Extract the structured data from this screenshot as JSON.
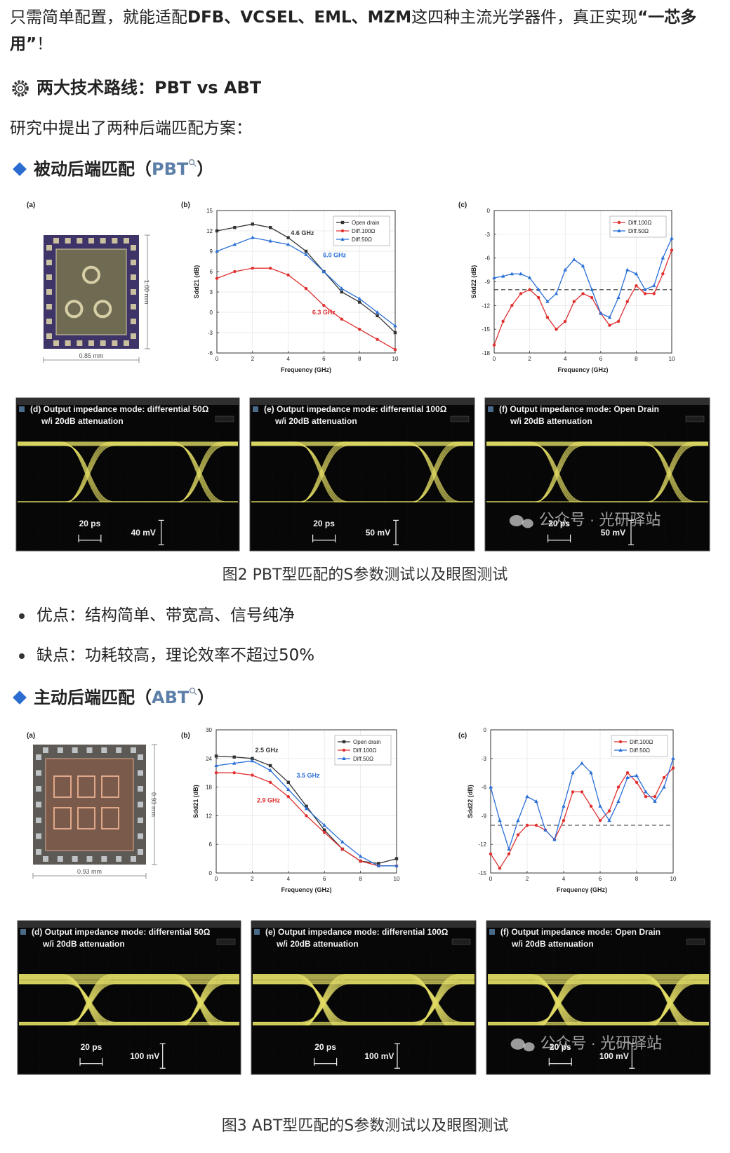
{
  "intro": {
    "runs": [
      {
        "text": "只需简单配置，就能适配"
      },
      {
        "text": "DFB、VCSEL、EML、MZM",
        "bold": true
      },
      {
        "text": "这四种主流光学器件，真正实现"
      },
      {
        "text": "“一芯多用”",
        "bold": true
      },
      {
        "text": "！"
      }
    ]
  },
  "routes_heading": "两大技术路线：PBT vs ABT",
  "lead": "研究中提出了两种后端匹配方案：",
  "sections": [
    {
      "heading": {
        "before": "被动后端匹配（",
        "term": "PBT",
        "after": "）"
      },
      "figure": {
        "chip": {
          "label": "(a)",
          "height_label": "1.00 mm",
          "width_label": "0.85 mm"
        },
        "charts": [
          {
            "label": "(b)",
            "type": "line",
            "ylabel": "Sdd21 (dB)",
            "xlabel": "Frequency (GHz)",
            "x": [
              0,
              1,
              2,
              3,
              4,
              5,
              6,
              7,
              8,
              9,
              10
            ],
            "xlim": [
              0,
              10
            ],
            "xticks": [
              0,
              2,
              4,
              6,
              8,
              10
            ],
            "ylim": [
              -6,
              15
            ],
            "yticks": [
              -6,
              -3,
              0,
              3,
              6,
              9,
              12,
              15
            ],
            "grid": true,
            "legend": "upper right",
            "series": [
              {
                "name": "Open drain",
                "color": "#333333",
                "marker": "square",
                "values": [
                  12,
                  12.5,
                  13,
                  12.5,
                  11,
                  9,
                  6,
                  3,
                  1.5,
                  -0.5,
                  -3
                ]
              },
              {
                "name": "Diff.100Ω",
                "color": "#e03030",
                "marker": "circle",
                "values": [
                  5,
                  6,
                  6.5,
                  6.5,
                  5.5,
                  3.5,
                  1,
                  -1,
                  -2.5,
                  -4,
                  -5.5
                ]
              },
              {
                "name": "Diff.50Ω",
                "color": "#2a6fd6",
                "marker": "triangle",
                "values": [
                  9,
                  10,
                  11,
                  10.5,
                  10,
                  8.5,
                  6,
                  3.5,
                  2,
                  0,
                  -2
                ]
              }
            ],
            "annotations": [
              {
                "text": "4.6 GHz",
                "color": "#333333"
              },
              {
                "text": "6.0 GHz",
                "color": "#2a6fd6"
              },
              {
                "text": "6.3 GHz",
                "color": "#e03030"
              }
            ]
          },
          {
            "label": "(c)",
            "type": "line",
            "ylabel": "Sdd22 (dB)",
            "xlabel": "Frequency (GHz)",
            "x": [
              0,
              0.5,
              1,
              1.5,
              2,
              2.5,
              3,
              3.5,
              4,
              4.5,
              5,
              5.5,
              6,
              6.5,
              7,
              7.5,
              8,
              8.5,
              9,
              9.5,
              10
            ],
            "xlim": [
              0,
              10
            ],
            "xticks": [
              0,
              2,
              4,
              6,
              8,
              10
            ],
            "ylim": [
              -18,
              0
            ],
            "yticks": [
              -18,
              -15,
              -12,
              -9,
              -6,
              -3,
              0
            ],
            "grid": true,
            "legend": "upper right",
            "ref_line": -10,
            "series": [
              {
                "name": "Diff.100Ω",
                "color": "#e03030",
                "marker": "circle",
                "values": [
                  -17,
                  -14,
                  -12,
                  -10.5,
                  -10,
                  -11,
                  -13.5,
                  -15,
                  -14,
                  -11.5,
                  -10.5,
                  -11,
                  -13,
                  -14.5,
                  -14,
                  -11.5,
                  -9.5,
                  -10.5,
                  -10.5,
                  -8,
                  -5
                ]
              },
              {
                "name": "Diff.50Ω",
                "color": "#2a6fd6",
                "marker": "triangle",
                "values": [
                  -8.5,
                  -8.3,
                  -8,
                  -8,
                  -8.5,
                  -10,
                  -11.5,
                  -10.5,
                  -7.5,
                  -6.2,
                  -7,
                  -10,
                  -13,
                  -13.5,
                  -11,
                  -7.5,
                  -8,
                  -10,
                  -9.5,
                  -6,
                  -3.5
                ]
              }
            ],
            "annotations": []
          }
        ],
        "eyes": [
          {
            "label": "(d) Output impedance mode: differential 50Ω",
            "attenuation": "w/i 20dB attenuation",
            "time_div": "20 ps",
            "volt_div": "40 mV"
          },
          {
            "label": "(e) Output impedance mode: differential 100Ω",
            "attenuation": "w/i 20dB attenuation",
            "time_div": "20 ps",
            "volt_div": "50 mV"
          },
          {
            "label": "(f) Output impedance mode: Open Drain",
            "attenuation": "w/i 20dB attenuation",
            "time_div": "20 ps",
            "volt_div": "50 mV"
          }
        ],
        "watermark": "公众号 · 光研驿站"
      },
      "caption": "图2 PBT型匹配的S参数测试以及眼图测试",
      "pros_cons": [
        "优点：结构简单、带宽高、信号纯净",
        "缺点：功耗较高，理论效率不超过50%"
      ]
    },
    {
      "heading": {
        "before": "主动后端匹配（",
        "term": "ABT",
        "after": "）"
      },
      "figure": {
        "chip": {
          "label": "(a)",
          "height_label": "0.93 mm",
          "width_label": "0.93 mm"
        },
        "charts": [
          {
            "label": "(b)",
            "type": "line",
            "ylabel": "Sdd21 (dB)",
            "xlabel": "Frequency (GHz)",
            "x": [
              0,
              1,
              2,
              3,
              4,
              5,
              6,
              7,
              8,
              9,
              10
            ],
            "xlim": [
              0,
              10
            ],
            "xticks": [
              0,
              2,
              4,
              6,
              8,
              10
            ],
            "ylim": [
              0,
              30
            ],
            "yticks": [
              0,
              6,
              12,
              18,
              24,
              30
            ],
            "grid": true,
            "legend": "upper right",
            "series": [
              {
                "name": "Open drain",
                "color": "#333333",
                "marker": "square",
                "values": [
                  24.5,
                  24.3,
                  24,
                  22.5,
                  19,
                  14,
                  9,
                  5,
                  2.5,
                  2,
                  3
                ]
              },
              {
                "name": "Diff.100Ω",
                "color": "#e03030",
                "marker": "circle",
                "values": [
                  21,
                  21,
                  20.5,
                  19,
                  16,
                  12,
                  8.5,
                  5,
                  2.5,
                  1.5,
                  1.5
                ]
              },
              {
                "name": "Diff.50Ω",
                "color": "#2a6fd6",
                "marker": "triangle",
                "values": [
                  22.5,
                  23,
                  23.5,
                  21.5,
                  17.5,
                  13.5,
                  10,
                  6.5,
                  3.5,
                  1.5,
                  1.5
                ]
              }
            ],
            "annotations": [
              {
                "text": "2.5 GHz",
                "color": "#333333"
              },
              {
                "text": "3.5 GHz",
                "color": "#2a6fd6"
              },
              {
                "text": "2.9 GHz",
                "color": "#e03030"
              }
            ]
          },
          {
            "label": "(c)",
            "type": "line",
            "ylabel": "Sdd22 (dB)",
            "xlabel": "Frequency (GHz)",
            "x": [
              0,
              0.5,
              1,
              1.5,
              2,
              2.5,
              3,
              3.5,
              4,
              4.5,
              5,
              5.5,
              6,
              6.5,
              7,
              7.5,
              8,
              8.5,
              9,
              9.5,
              10
            ],
            "xlim": [
              0,
              10
            ],
            "xticks": [
              0,
              2,
              4,
              6,
              8,
              10
            ],
            "ylim": [
              -15,
              0
            ],
            "yticks": [
              -15,
              -12,
              -9,
              -6,
              -3,
              0
            ],
            "grid": true,
            "legend": "upper right",
            "ref_line": -10,
            "series": [
              {
                "name": "Diff.100Ω",
                "color": "#e03030",
                "marker": "circle",
                "values": [
                  -13,
                  -14.5,
                  -13,
                  -11,
                  -10,
                  -10,
                  -10.5,
                  -11.5,
                  -9.5,
                  -6.5,
                  -6.5,
                  -8,
                  -9.5,
                  -8.5,
                  -6,
                  -4.5,
                  -5.5,
                  -7,
                  -7,
                  -5,
                  -4
                ]
              },
              {
                "name": "Diff.50Ω",
                "color": "#2a6fd6",
                "marker": "triangle",
                "values": [
                  -6,
                  -9.5,
                  -12.5,
                  -9.5,
                  -7,
                  -7.5,
                  -10.5,
                  -11.5,
                  -8,
                  -4.5,
                  -3.5,
                  -4.5,
                  -8,
                  -9.5,
                  -7.5,
                  -5,
                  -4.8,
                  -6.5,
                  -7.5,
                  -6,
                  -3
                ]
              }
            ],
            "annotations": []
          }
        ],
        "eyes": [
          {
            "label": "(d) Output impedance mode: differential 50Ω",
            "attenuation": "w/i 20dB attenuation",
            "time_div": "20 ps",
            "volt_div": "100 mV"
          },
          {
            "label": "(e) Output impedance mode: differential 100Ω",
            "attenuation": "w/i 20dB attenuation",
            "time_div": "20 ps",
            "volt_div": "100 mV"
          },
          {
            "label": "(f) Output impedance mode: Open Drain",
            "attenuation": "w/i 20dB attenuation",
            "time_div": "20 ps",
            "volt_div": "100 mV"
          }
        ],
        "watermark": "公众号 · 光研驿站"
      },
      "caption": "图3 ABT型匹配的S参数测试以及眼图测试"
    }
  ]
}
